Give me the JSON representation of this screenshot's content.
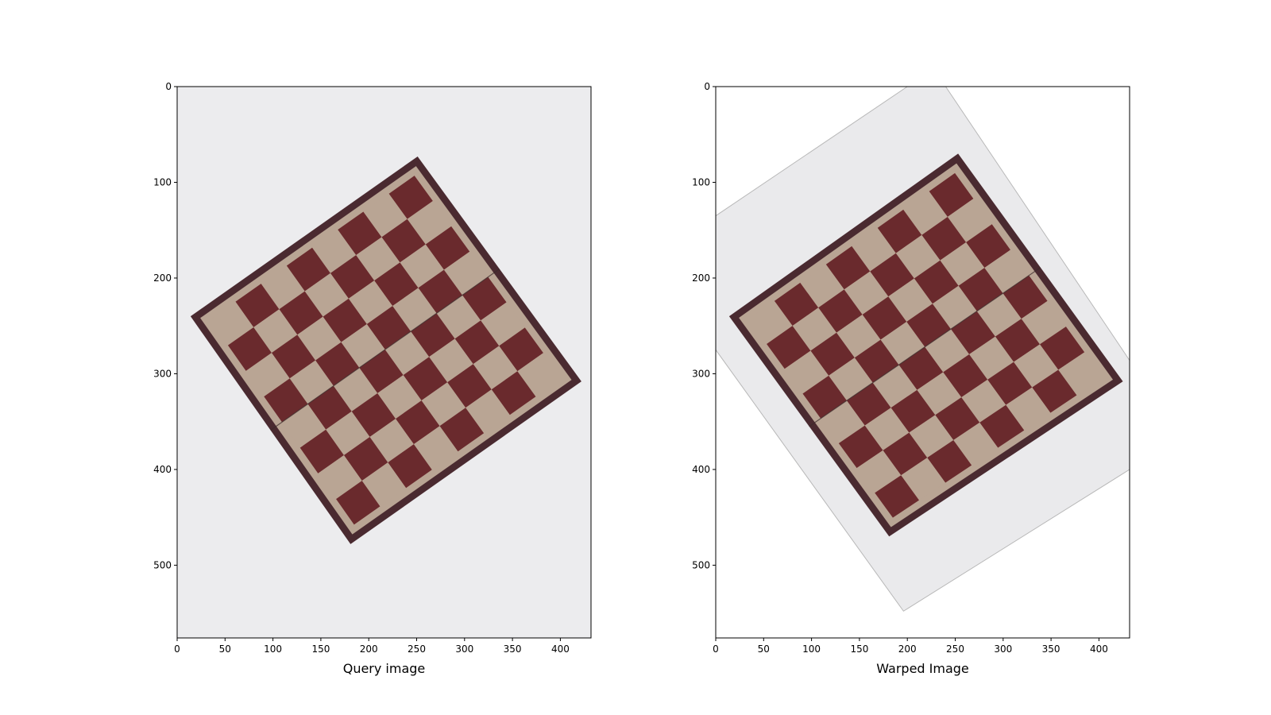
{
  "figure": {
    "background": "#ffffff"
  },
  "chart_data": [
    {
      "type": "image",
      "xlabel": "Query image",
      "xticks": [
        0,
        50,
        100,
        150,
        200,
        250,
        300,
        350,
        400
      ],
      "yticks": [
        0,
        100,
        200,
        300,
        400,
        500
      ],
      "xlim": [
        0,
        432
      ],
      "ylim": [
        576,
        0
      ],
      "image_background": "#ececee",
      "board": {
        "corners_data": [
          [
            251,
            73
          ],
          [
            422,
            308
          ],
          [
            181,
            478
          ],
          [
            14,
            240
          ]
        ],
        "light_square": "#b9a594",
        "dark_square": "#6a2a2d",
        "frame_color": "#4a2a30",
        "grid": [
          8,
          8
        ]
      }
    },
    {
      "type": "image",
      "xlabel": "Warped Image",
      "xticks": [
        0,
        50,
        100,
        150,
        200,
        250,
        300,
        350,
        400
      ],
      "yticks": [
        0,
        100,
        200,
        300,
        400,
        500
      ],
      "xlim": [
        0,
        432
      ],
      "ylim": [
        576,
        0
      ],
      "image_background": "#ffffff",
      "warped_region": {
        "corners_data": [
          [
            200,
            0
          ],
          [
            240,
            0
          ],
          [
            432,
            286
          ],
          [
            432,
            400
          ],
          [
            196,
            548
          ],
          [
            0,
            275
          ],
          [
            0,
            135
          ]
        ],
        "color": "#eaeaec"
      },
      "board": {
        "corners_data": [
          [
            253,
            70
          ],
          [
            425,
            308
          ],
          [
            181,
            470
          ],
          [
            14,
            240
          ]
        ],
        "light_square": "#b9a594",
        "dark_square": "#6a2a2d",
        "frame_color": "#4a2a30",
        "grid": [
          8,
          8
        ]
      }
    }
  ]
}
